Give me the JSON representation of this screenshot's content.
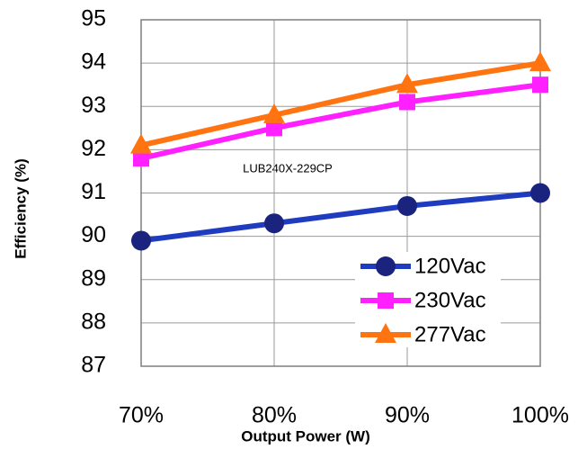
{
  "chart_data": {
    "type": "line",
    "annotation": "LUB240X-229CP",
    "x_label": "Output Power (W)",
    "y_label": "Efficiency (%)",
    "x": [
      70,
      80,
      90,
      100
    ],
    "xlim": [
      70,
      100
    ],
    "xticks": [
      {
        "value": 70,
        "label": "70%"
      },
      {
        "value": 80,
        "label": "80%"
      },
      {
        "value": 90,
        "label": "90%"
      },
      {
        "value": 100,
        "label": "100%"
      }
    ],
    "ylim": [
      87,
      95
    ],
    "yticks": [
      87,
      88,
      89,
      90,
      91,
      92,
      93,
      94,
      95
    ],
    "grid": true,
    "legend": "lower right",
    "series": [
      {
        "name": "120Vac",
        "color": "#1f3cc0",
        "marker": "circle",
        "values": [
          89.9,
          90.3,
          90.7,
          91.0
        ]
      },
      {
        "name": "230Vac",
        "color": "#ff1fff",
        "marker": "square",
        "values": [
          91.8,
          92.5,
          93.1,
          93.5
        ]
      },
      {
        "name": "277Vac",
        "color": "#ff7410",
        "marker": "triangle",
        "values": [
          92.1,
          92.8,
          93.5,
          94.0
        ]
      }
    ]
  }
}
